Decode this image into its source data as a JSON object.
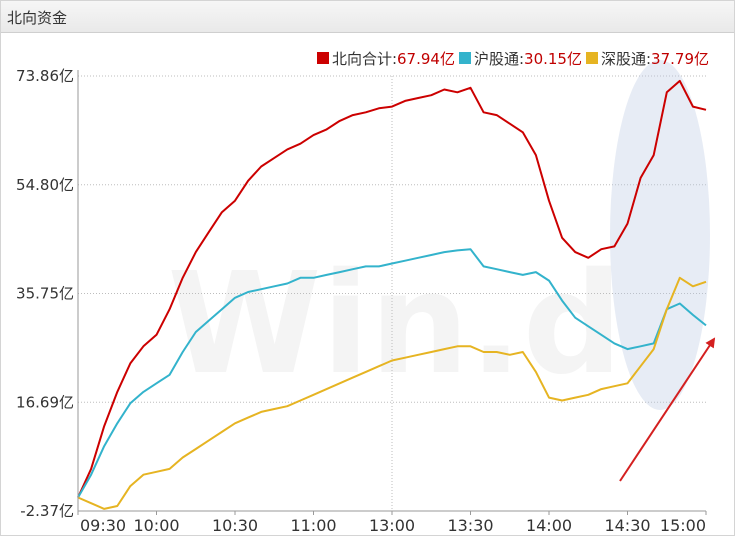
{
  "panel": {
    "title": "北向资金"
  },
  "chart_data": {
    "type": "line",
    "title": "北向资金",
    "xlabel": "",
    "ylabel": "",
    "x": [
      "09:30",
      "09:35",
      "09:40",
      "09:45",
      "09:50",
      "09:55",
      "10:00",
      "10:05",
      "10:10",
      "10:15",
      "10:20",
      "10:25",
      "10:30",
      "10:35",
      "10:40",
      "10:45",
      "10:50",
      "10:55",
      "11:00",
      "11:05",
      "11:10",
      "11:15",
      "11:20",
      "11:25",
      "11:30",
      "13:05",
      "13:10",
      "13:15",
      "13:20",
      "13:25",
      "13:30",
      "13:35",
      "13:40",
      "13:45",
      "13:50",
      "13:55",
      "14:00",
      "14:05",
      "14:10",
      "14:15",
      "14:20",
      "14:25",
      "14:30",
      "14:35",
      "14:40",
      "14:45",
      "14:50",
      "14:55",
      "15:00"
    ],
    "x_ticks": [
      "09:30",
      "10:00",
      "10:30",
      "11:00",
      "13:00",
      "13:30",
      "14:00",
      "14:30",
      "15:00"
    ],
    "y_ticks": [
      "-2.37亿",
      "16.69亿",
      "35.75亿",
      "54.80亿",
      "73.86亿"
    ],
    "ylim": [
      -2.37,
      73.86
    ],
    "unit": "亿",
    "watermark": "Win.d",
    "series": [
      {
        "name": "北向合计",
        "latest_label": "67.94亿",
        "color": "#cc0000",
        "values": [
          0.0,
          5.0,
          12.5,
          18.5,
          23.5,
          26.5,
          28.5,
          33.0,
          38.5,
          43.0,
          46.5,
          50.0,
          52.0,
          55.5,
          58.0,
          59.5,
          61.0,
          62.0,
          63.5,
          64.5,
          66.0,
          67.0,
          67.5,
          68.2,
          68.5,
          69.5,
          70.0,
          70.5,
          71.5,
          71.0,
          71.8,
          67.5,
          67.0,
          65.5,
          64.0,
          60.0,
          52.0,
          45.5,
          43.0,
          42.0,
          43.5,
          44.0,
          48.0,
          56.0,
          60.0,
          71.0,
          73.0,
          68.5,
          67.94
        ]
      },
      {
        "name": "沪股通",
        "latest_label": "30.15亿",
        "color": "#33b3cc",
        "values": [
          0.0,
          4.0,
          9.0,
          13.0,
          16.5,
          18.5,
          20.0,
          21.5,
          25.5,
          29.0,
          31.0,
          33.0,
          35.0,
          36.0,
          36.5,
          37.0,
          37.5,
          38.5,
          38.5,
          39.0,
          39.5,
          40.0,
          40.5,
          40.5,
          41.0,
          41.5,
          42.0,
          42.5,
          43.0,
          43.3,
          43.5,
          40.5,
          40.0,
          39.5,
          39.0,
          39.5,
          38.0,
          34.5,
          31.5,
          30.0,
          28.5,
          27.0,
          26.0,
          26.5,
          27.0,
          33.0,
          34.0,
          32.0,
          30.15
        ]
      },
      {
        "name": "深股通",
        "latest_label": "37.79亿",
        "color": "#e6b422",
        "values": [
          0.0,
          -1.0,
          -2.0,
          -1.5,
          2.0,
          4.0,
          4.5,
          5.0,
          7.0,
          8.5,
          10.0,
          11.5,
          13.0,
          14.0,
          15.0,
          15.5,
          16.0,
          17.0,
          18.0,
          19.0,
          20.0,
          21.0,
          22.0,
          23.0,
          24.0,
          24.5,
          25.0,
          25.5,
          26.0,
          26.5,
          26.5,
          25.5,
          25.5,
          25.0,
          25.5,
          22.0,
          17.5,
          17.0,
          17.5,
          18.0,
          19.0,
          19.5,
          20.0,
          23.0,
          26.0,
          33.0,
          38.5,
          37.0,
          37.79
        ]
      }
    ],
    "annotations": [
      "highlight-ellipse",
      "red-arrow"
    ]
  }
}
